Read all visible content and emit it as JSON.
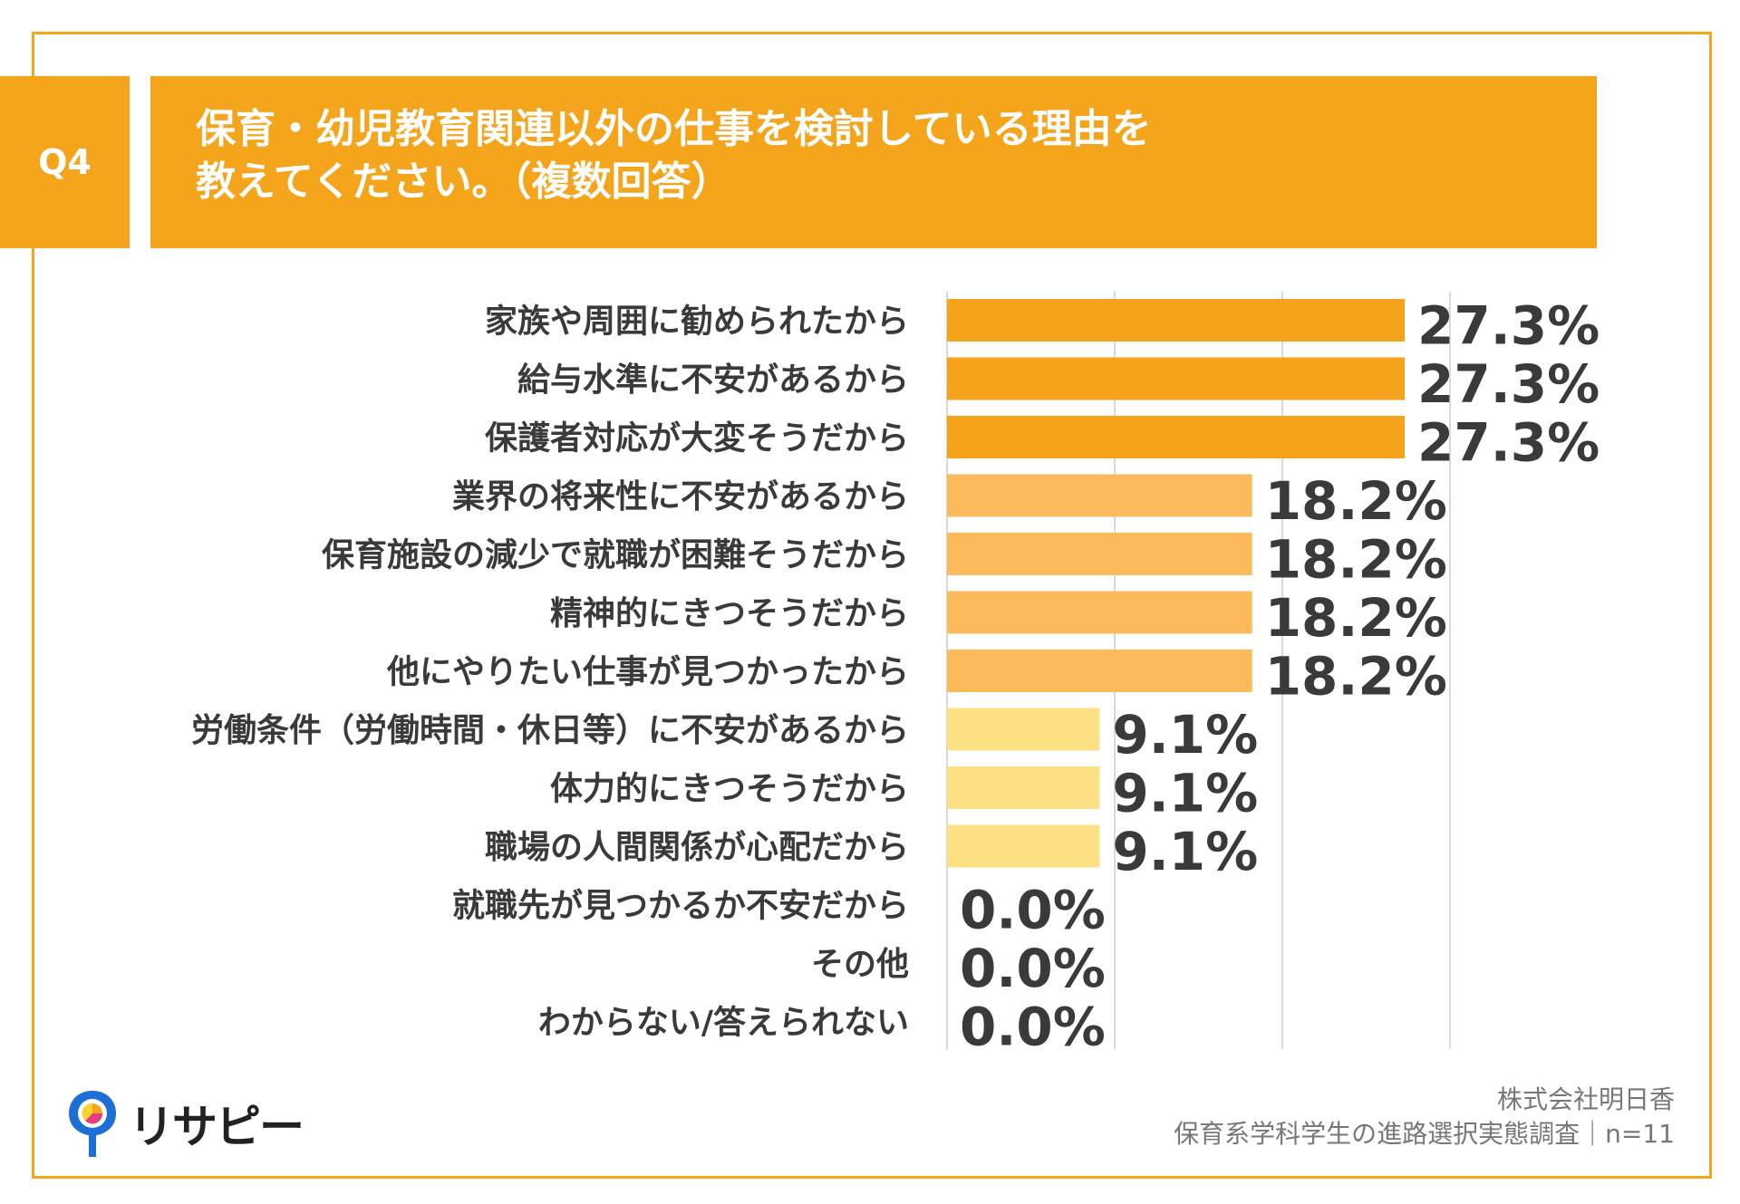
{
  "header": {
    "badge": "Q4",
    "title_line1": "保育・幼児教育関連以外の仕事を検討している理由を",
    "title_line2": "教えてください。（複数回答）"
  },
  "colors": {
    "frame": "#f4a51c",
    "bar_high": "#f7a21b",
    "bar_mid": "#fbbb5d",
    "bar_low": "#fde084",
    "grid": "#d9d9d9"
  },
  "chart_data": {
    "type": "bar",
    "orientation": "horizontal",
    "title": "保育・幼児教育関連以外の仕事を検討している理由を教えてください。（複数回答）",
    "categories": [
      "家族や周囲に勧められたから",
      "給与水準に不安があるから",
      "保護者対応が大変そうだから",
      "業界の将来性に不安があるから",
      "保育施設の減少で就職が困難そうだから",
      "精神的にきつそうだから",
      "他にやりたい仕事が見つかったから",
      "労働条件（労働時間・休日等）に不安があるから",
      "体力的にきつそうだから",
      "職場の人間関係が心配だから",
      "就職先が見つかるか不安だから",
      "その他",
      "わからない/答えられない"
    ],
    "values": [
      27.3,
      27.3,
      27.3,
      18.2,
      18.2,
      18.2,
      18.2,
      9.1,
      9.1,
      9.1,
      0.0,
      0.0,
      0.0
    ],
    "value_labels": [
      "27.3%",
      "27.3%",
      "27.3%",
      "18.2%",
      "18.2%",
      "18.2%",
      "18.2%",
      "9.1%",
      "9.1%",
      "9.1%",
      "0.0%",
      "0.0%",
      "0.0%"
    ],
    "xlim": [
      0,
      30
    ],
    "grid": true,
    "unit": "%"
  },
  "logo": {
    "text": "リサピー"
  },
  "source": {
    "company": "株式会社明日香",
    "survey": "保育系学科学生の進路選択実態調査｜n=11"
  }
}
